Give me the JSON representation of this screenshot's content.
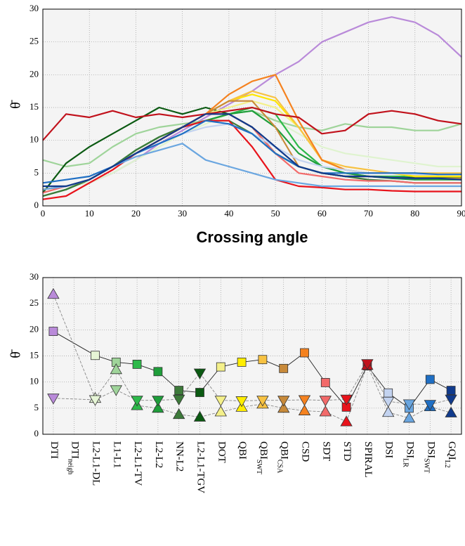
{
  "chart_data": [
    {
      "type": "line",
      "xlabel": "Crossing angle",
      "ylabel": "θ̄",
      "x": [
        0,
        5,
        10,
        15,
        20,
        25,
        30,
        35,
        40,
        45,
        50,
        55,
        60,
        65,
        70,
        75,
        80,
        85,
        90
      ],
      "xlim": [
        0,
        90
      ],
      "xticks": [
        0,
        10,
        20,
        30,
        40,
        50,
        60,
        70,
        80,
        90
      ],
      "ylim": [
        0,
        30
      ],
      "yticks": [
        0,
        5,
        10,
        15,
        20,
        25,
        30
      ],
      "grid": true,
      "series": [
        {
          "color": "#b98ad9",
          "values": [
            2.5,
            3,
            3.5,
            5,
            7,
            9.5,
            11.5,
            13.5,
            15.5,
            17.5,
            20,
            22,
            25,
            26.5,
            28,
            28.8,
            28,
            26,
            22.7
          ]
        },
        {
          "color": "#dff3cf",
          "values": [
            2,
            3,
            3.5,
            5,
            7,
            9,
            11,
            12.5,
            14,
            14.5,
            13,
            11,
            9,
            8,
            7.5,
            7,
            6.5,
            6,
            6
          ]
        },
        {
          "color": "#9fd49a",
          "values": [
            7,
            6,
            6.5,
            9,
            11,
            12,
            12.5,
            13,
            14,
            14.5,
            13,
            12,
            11.5,
            12.5,
            12,
            12,
            11.5,
            11.5,
            12.5
          ]
        },
        {
          "color": "#2db94a",
          "values": [
            1.5,
            2.5,
            4,
            6,
            8.5,
            10.5,
            12,
            13,
            14,
            15,
            14,
            9,
            6,
            5,
            4.5,
            4.5,
            4.5,
            4.5,
            4.3
          ]
        },
        {
          "color": "#1e9e3a",
          "values": [
            1.5,
            2.5,
            4,
            6,
            8.5,
            10.5,
            12,
            13,
            14,
            14.5,
            12,
            8,
            6,
            5,
            4.5,
            4.2,
            4,
            4,
            4
          ]
        },
        {
          "color": "#3d7a3a",
          "values": [
            1.5,
            2.5,
            4,
            6,
            8.5,
            10.5,
            12,
            13,
            13,
            11,
            8,
            6,
            5,
            4.5,
            4,
            3.8,
            3.5,
            3.5,
            3.5
          ]
        },
        {
          "color": "#0b5a12",
          "values": [
            2,
            6.5,
            9,
            11,
            13,
            15,
            14,
            15,
            14,
            12,
            8,
            6,
            5,
            4.5,
            4.5,
            4.3,
            4.3,
            4.3,
            4.2
          ]
        },
        {
          "color": "#f4f08a",
          "values": [
            2.5,
            3,
            4,
            6,
            8,
            10,
            12,
            14,
            15,
            16,
            15,
            12,
            7,
            5.5,
            5,
            5,
            4.5,
            4.5,
            4.5
          ]
        },
        {
          "color": "#ffe600",
          "values": [
            2.5,
            3,
            4,
            6,
            8,
            10,
            12,
            14,
            16,
            17,
            16,
            12,
            7,
            5.5,
            5,
            5,
            4.5,
            4.5,
            4.5
          ]
        },
        {
          "color": "#f7c242",
          "values": [
            2.5,
            3,
            4,
            6,
            8,
            10,
            12,
            14,
            16,
            17.5,
            16.5,
            12,
            7,
            6,
            5.5,
            5,
            5,
            5,
            5
          ]
        },
        {
          "color": "#c88a3a",
          "values": [
            2.5,
            3,
            4,
            6,
            8,
            10,
            12,
            14,
            16,
            16,
            12,
            6,
            5,
            4.5,
            4.5,
            4.3,
            4.2,
            4.2,
            4.2
          ]
        },
        {
          "color": "#f5821f",
          "values": [
            2.5,
            3,
            4,
            6,
            8,
            10,
            12,
            14,
            17,
            19,
            20,
            13,
            7,
            5.5,
            5,
            5,
            4.8,
            4.8,
            4.8
          ]
        },
        {
          "color": "#f26a6a",
          "values": [
            2,
            3,
            4,
            6,
            8,
            10,
            12,
            14,
            14,
            12,
            8,
            5,
            4.5,
            4,
            3.8,
            3.8,
            3.5,
            3.5,
            3.5
          ]
        },
        {
          "color": "#e8131b",
          "values": [
            1,
            1.5,
            3.5,
            5.5,
            8,
            10,
            12,
            13,
            13,
            9,
            4,
            3,
            2.8,
            2.5,
            2.5,
            2.3,
            2.2,
            2.2,
            2.2
          ]
        },
        {
          "color": "#c1121c",
          "values": [
            10,
            14,
            13.5,
            14.5,
            13.5,
            14,
            13.5,
            14,
            14.5,
            15,
            14,
            13.5,
            11,
            11.5,
            14,
            14.5,
            14,
            13,
            12.5
          ]
        },
        {
          "color": "#c3d3f0",
          "values": [
            2.5,
            3,
            4,
            6,
            8,
            9.5,
            11,
            12,
            12.5,
            11,
            9,
            7,
            6,
            5.5,
            5,
            5,
            4.8,
            4.8,
            4.8
          ]
        },
        {
          "color": "#6aa6e0",
          "values": [
            2.5,
            3,
            4,
            6,
            7.5,
            8.5,
            9.5,
            7,
            6,
            5,
            4,
            3.5,
            3,
            3,
            3,
            3,
            3,
            3,
            3
          ]
        },
        {
          "color": "#1f6fc4",
          "values": [
            3.5,
            4,
            4.5,
            6,
            8,
            9.5,
            11,
            13,
            12.5,
            11,
            8,
            6,
            5,
            5,
            5,
            5,
            5,
            4.8,
            4.8
          ]
        },
        {
          "color": "#103a8c",
          "values": [
            3,
            3,
            4,
            6,
            8,
            10,
            12,
            14,
            14,
            12,
            9,
            6,
            5,
            4.5,
            4.5,
            4.3,
            4.2,
            4.2,
            4
          ]
        }
      ]
    },
    {
      "type": "dotplot",
      "ylabel": "θ̄",
      "categories": [
        "DTI",
        "DTI",
        "L2-L1-DL",
        "L1-L1",
        "L2-L1-TV",
        "L2-L2",
        "NN-L2",
        "L2-L1-TGV",
        "DOT",
        "QBI",
        "QBI",
        "QBI",
        "CSD",
        "SDT",
        "STD",
        "SPIRAL",
        "DSI",
        "DSI",
        "DSI",
        "GQI"
      ],
      "category_subscripts": [
        null,
        "neigh",
        null,
        null,
        null,
        null,
        null,
        null,
        null,
        null,
        "SWT",
        "CSA",
        null,
        null,
        null,
        null,
        null,
        "LR",
        "SWT",
        "L2"
      ],
      "colors": [
        "#b98ad9",
        null,
        "#e6f5d6",
        "#9fd49a",
        "#2db94a",
        "#1e9e3a",
        "#3d7a3a",
        "#0b5a12",
        "#f4f08a",
        "#ffee00",
        "#f7c242",
        "#c88a3a",
        "#f5821f",
        "#f26a6a",
        "#e8131b",
        "#c1121c",
        "#c3d3f0",
        "#6aa6e0",
        "#1f6fc4",
        "#103a8c"
      ],
      "ylim": [
        0,
        30
      ],
      "yticks": [
        0,
        5,
        10,
        15,
        20,
        25,
        30
      ],
      "grid": true,
      "series": [
        {
          "marker": "square",
          "line_style": "solid",
          "values": [
            19.7,
            null,
            15.1,
            13.8,
            13.4,
            12.0,
            8.4,
            8.0,
            12.9,
            13.8,
            14.3,
            12.6,
            15.6,
            9.9,
            5.2,
            13.1,
            7.9,
            5.0,
            10.5,
            8.4
          ]
        },
        {
          "marker": "triangle-up",
          "line_style": "dashed",
          "values": [
            26.8,
            null,
            6.9,
            12.4,
            5.5,
            5.0,
            3.8,
            3.3,
            4.3,
            5.2,
            5.8,
            5.0,
            4.5,
            4.3,
            2.4,
            13.2,
            4.2,
            3.1,
            5.3,
            4.1
          ]
        },
        {
          "marker": "triangle-down",
          "line_style": "dashed",
          "values": [
            6.9,
            null,
            6.6,
            8.5,
            6.5,
            6.5,
            6.7,
            11.7,
            6.5,
            6.4,
            6.5,
            6.5,
            6.6,
            6.5,
            6.7,
            13.5,
            6.3,
            5.8,
            5.7,
            6.7
          ]
        }
      ]
    }
  ]
}
